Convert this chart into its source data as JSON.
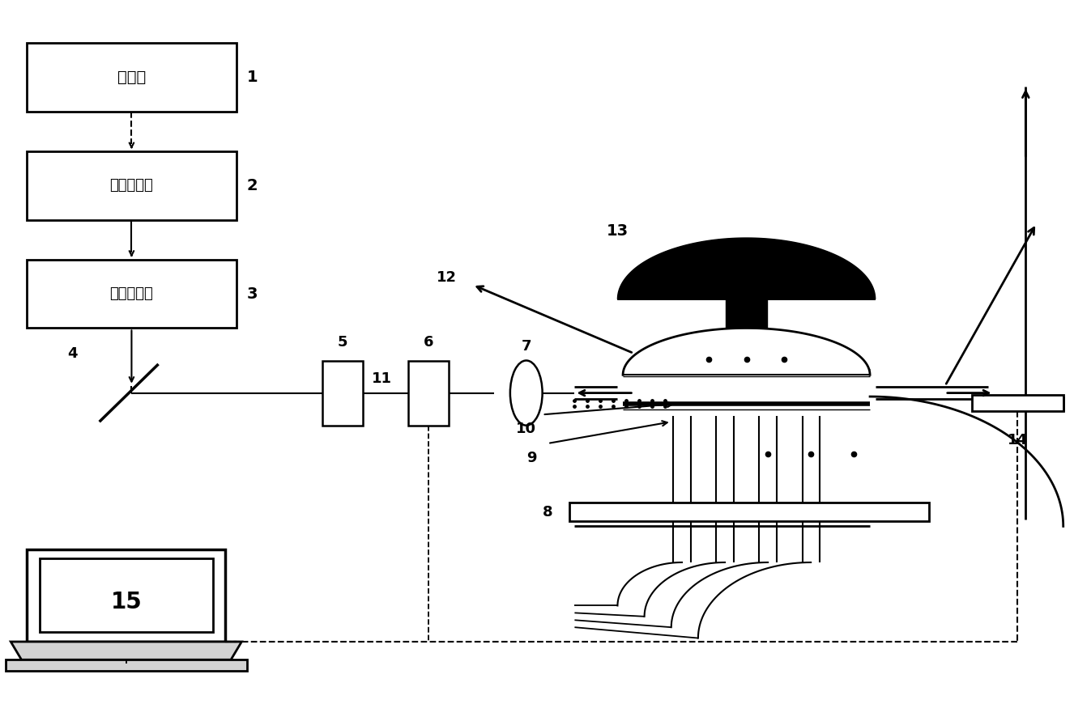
{
  "bg": "#ffffff",
  "fig_w": 13.26,
  "fig_h": 8.91,
  "box1_label": "泵浦源",
  "box2_label": "飞秒激光器",
  "box3_label": "再生放大器",
  "num15": "15"
}
